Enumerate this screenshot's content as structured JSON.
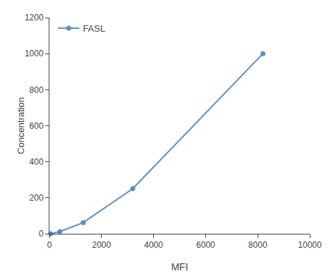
{
  "chart_data": {
    "type": "line",
    "xlabel": "MFI",
    "ylabel": "Concentration",
    "x": [
      50,
      400,
      1300,
      3200,
      8200
    ],
    "series": [
      {
        "name": "FASL",
        "color": "#5b8ec4",
        "marker": "circle",
        "values": [
          0,
          12,
          62,
          250,
          1000
        ]
      }
    ],
    "xlim": [
      0,
      10000
    ],
    "ylim": [
      0,
      1200
    ],
    "xticks": [
      0,
      2000,
      4000,
      6000,
      8000,
      10000
    ],
    "yticks": [
      0,
      200,
      400,
      600,
      800,
      1000,
      1200
    ],
    "grid": false,
    "legend": "upper left"
  }
}
